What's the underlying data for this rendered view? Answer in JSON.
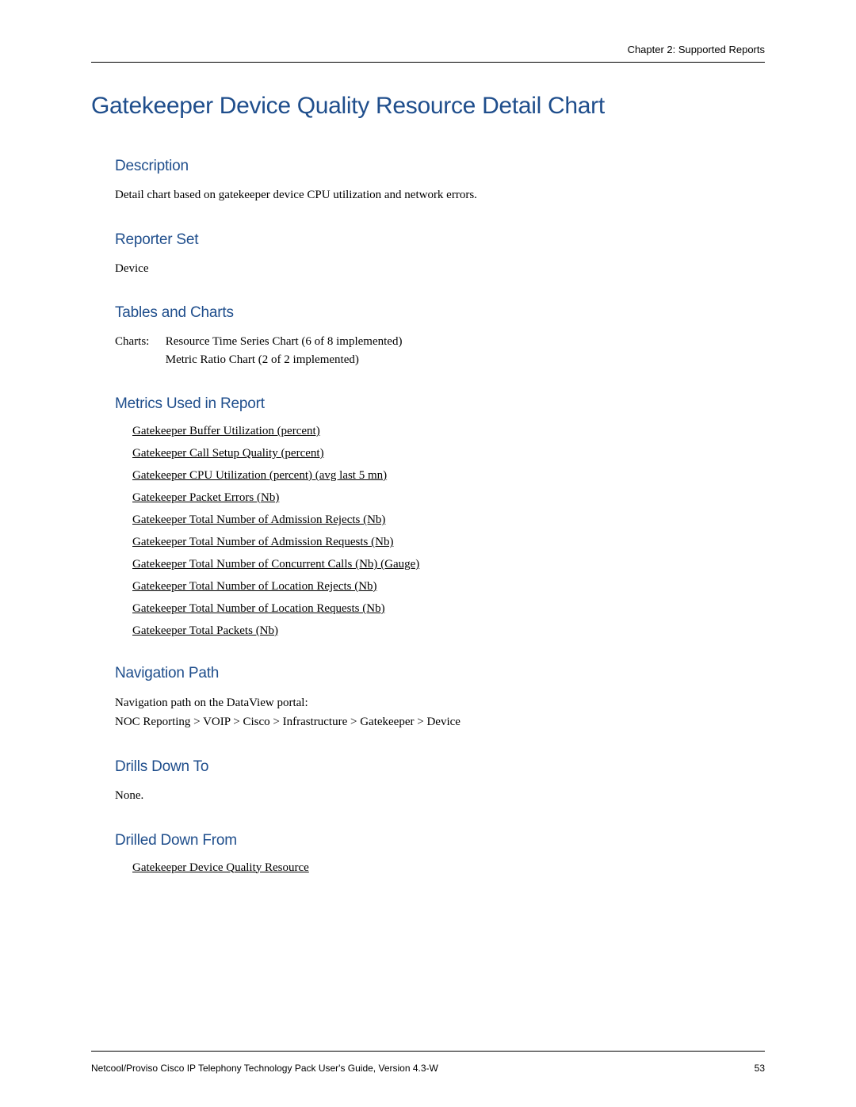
{
  "header": {
    "chapter": "Chapter 2: Supported Reports"
  },
  "title": "Gatekeeper Device Quality Resource Detail Chart",
  "sections": {
    "description": {
      "heading": "Description",
      "text": "Detail chart based on gatekeeper device CPU utilization and network errors."
    },
    "reporter_set": {
      "heading": "Reporter Set",
      "text": "Device"
    },
    "tables_charts": {
      "heading": "Tables and Charts",
      "prefix": "Charts:",
      "line1": "Resource Time Series Chart (6 of 8 implemented)",
      "line2": "Metric Ratio Chart (2 of 2 implemented)"
    },
    "metrics": {
      "heading": "Metrics Used in Report",
      "items": [
        "Gatekeeper Buffer Utilization (percent)",
        "Gatekeeper Call Setup Quality (percent)",
        "Gatekeeper CPU Utilization (percent) (avg last 5 mn)",
        "Gatekeeper Packet Errors (Nb)",
        "Gatekeeper Total Number of Admission Rejects (Nb)",
        "Gatekeeper Total Number of Admission Requests (Nb)",
        "Gatekeeper Total Number of Concurrent Calls (Nb) (Gauge)",
        "Gatekeeper Total Number of Location Rejects (Nb)",
        "Gatekeeper Total Number of Location Requests (Nb)",
        "Gatekeeper Total Packets (Nb)"
      ]
    },
    "navigation": {
      "heading": "Navigation Path",
      "line1": "Navigation path on the DataView portal:",
      "line2": "NOC Reporting > VOIP > Cisco >  Infrastructure >  Gatekeeper >  Device"
    },
    "drills_down_to": {
      "heading": "Drills Down To",
      "text": "None."
    },
    "drilled_down_from": {
      "heading": "Drilled Down From",
      "items": [
        "Gatekeeper Device Quality Resource"
      ]
    }
  },
  "footer": {
    "text": "Netcool/Proviso Cisco IP Telephony Technology Pack User's Guide, Version 4.3-W",
    "page": "53"
  }
}
